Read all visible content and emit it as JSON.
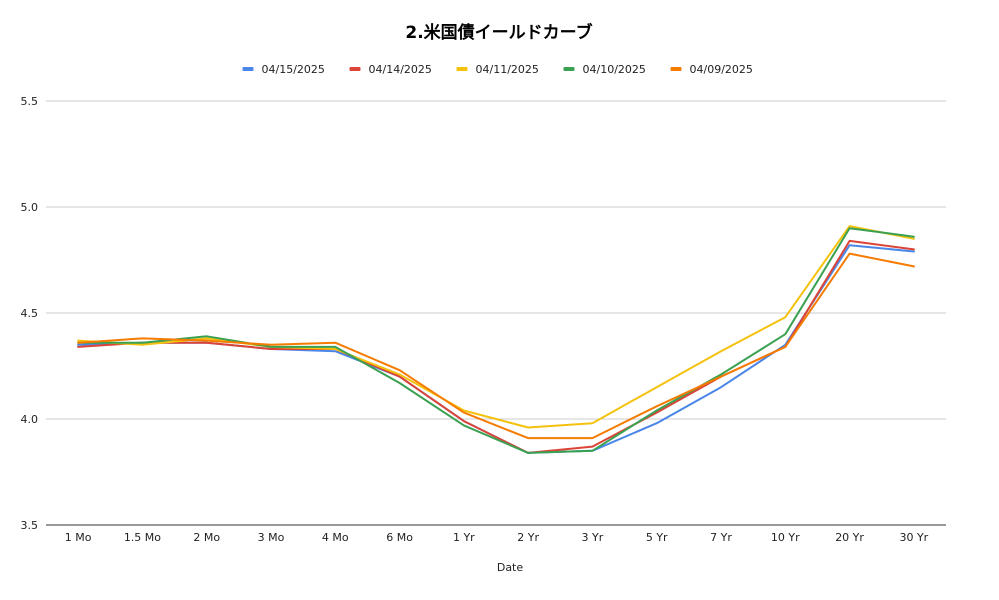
{
  "chart_data": {
    "type": "line",
    "title": "2.米国債イールドカーブ",
    "xlabel": "Date",
    "ylabel": "",
    "categories": [
      "1 Mo",
      "1.5 Mo",
      "2 Mo",
      "3 Mo",
      "4 Mo",
      "6 Mo",
      "1 Yr",
      "2 Yr",
      "3 Yr",
      "5 Yr",
      "7 Yr",
      "10 Yr",
      "20 Yr",
      "30 Yr"
    ],
    "ylim": [
      3.5,
      5.5
    ],
    "yticks": [
      "3.5",
      "4.0",
      "4.5",
      "5.0",
      "5.5"
    ],
    "grid": true,
    "legend_position": "top",
    "series": [
      {
        "name": "04/15/2025",
        "color": "#4a86e8",
        "values": [
          4.35,
          4.36,
          4.36,
          4.33,
          4.32,
          4.2,
          3.99,
          3.84,
          3.85,
          3.98,
          4.15,
          4.35,
          4.82,
          4.79
        ]
      },
      {
        "name": "04/14/2025",
        "color": "#db4437",
        "values": [
          4.34,
          4.36,
          4.36,
          4.33,
          4.33,
          4.2,
          3.99,
          3.84,
          3.87,
          4.03,
          4.2,
          4.34,
          4.84,
          4.8
        ]
      },
      {
        "name": "04/11/2025",
        "color": "#f4c20d",
        "values": [
          4.37,
          4.35,
          4.38,
          4.34,
          4.33,
          4.21,
          4.04,
          3.96,
          3.98,
          4.15,
          4.32,
          4.48,
          4.91,
          4.85
        ]
      },
      {
        "name": "04/10/2025",
        "color": "#3aa152",
        "values": [
          4.36,
          4.36,
          4.39,
          4.34,
          4.34,
          4.17,
          3.97,
          3.84,
          3.85,
          4.04,
          4.21,
          4.4,
          4.9,
          4.86
        ]
      },
      {
        "name": "04/09/2025",
        "color": "#f57c00",
        "values": [
          4.36,
          4.38,
          4.37,
          4.35,
          4.36,
          4.23,
          4.03,
          3.91,
          3.91,
          4.06,
          4.2,
          4.34,
          4.78,
          4.72
        ]
      }
    ]
  }
}
